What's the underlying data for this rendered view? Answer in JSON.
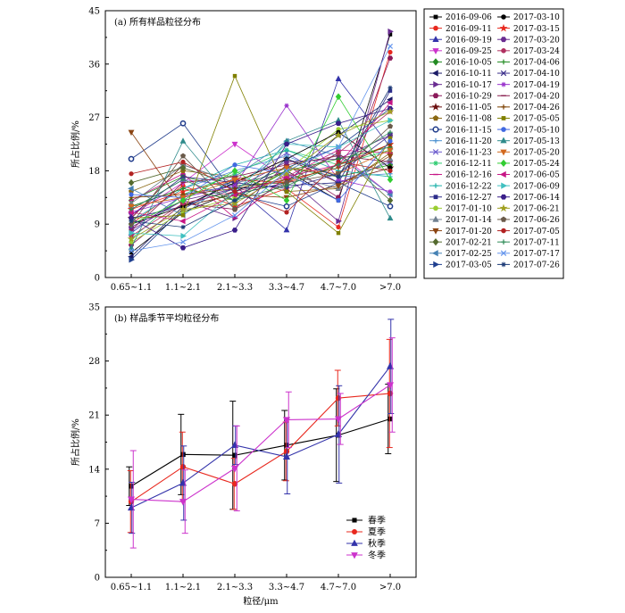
{
  "chart_data": [
    {
      "type": "line",
      "title": "(a)  所有样品粒径分布",
      "xlabel": "",
      "ylabel": "所占比例/%",
      "categories": [
        "0.65~1.1",
        "1.1~2.1",
        "2.1~3.3",
        "3.3~4.7",
        "4.7~7.0",
        ">7.0"
      ],
      "ylim": [
        0,
        45
      ],
      "yticks": [
        "0",
        "9",
        "18",
        "27",
        "36",
        "45"
      ],
      "legend_position": "right",
      "series": [
        {
          "name": "2016-09-06",
          "color": "#000000",
          "marker": "square",
          "values": [
            4.2,
            11.0,
            14.5,
            18.0,
            13.0,
            41.0
          ]
        },
        {
          "name": "2016-09-11",
          "color": "#e8281e",
          "marker": "circle",
          "values": [
            9.0,
            15.5,
            12.0,
            15.0,
            8.5,
            38.0
          ]
        },
        {
          "name": "2016-09-19",
          "color": "#3333aa",
          "marker": "triangle",
          "values": [
            7.5,
            14.0,
            15.5,
            8.0,
            33.5,
            22.0
          ]
        },
        {
          "name": "2016-09-25",
          "color": "#cc33cc",
          "marker": "triangle-down",
          "values": [
            10.5,
            16.0,
            22.5,
            16.5,
            21.0,
            14.0
          ]
        },
        {
          "name": "2016-10-05",
          "color": "#228b22",
          "marker": "diamond",
          "values": [
            13.0,
            17.0,
            15.0,
            18.5,
            17.0,
            19.0
          ]
        },
        {
          "name": "2016-10-11",
          "color": "#1a1a66",
          "marker": "triangle-left",
          "values": [
            3.5,
            12.0,
            14.0,
            16.0,
            24.0,
            30.0
          ]
        },
        {
          "name": "2016-10-17",
          "color": "#6a2c91",
          "marker": "triangle-right",
          "values": [
            8.0,
            13.0,
            10.0,
            17.0,
            9.5,
            41.5
          ]
        },
        {
          "name": "2016-10-29",
          "color": "#8b1a5a",
          "marker": "hexagon",
          "values": [
            5.5,
            12.5,
            11.5,
            19.0,
            13.5,
            37.0
          ]
        },
        {
          "name": "2016-11-05",
          "color": "#6b0f0f",
          "marker": "star",
          "values": [
            10.0,
            19.0,
            16.0,
            20.0,
            16.0,
            18.5
          ]
        },
        {
          "name": "2016-11-08",
          "color": "#8b6914",
          "marker": "pentagon",
          "values": [
            14.5,
            18.0,
            17.0,
            14.5,
            15.0,
            21.0
          ]
        },
        {
          "name": "2016-11-15",
          "color": "#1e3a8a",
          "marker": "circle-half",
          "values": [
            20.0,
            26.0,
            14.0,
            12.0,
            16.0,
            12.0
          ]
        },
        {
          "name": "2016-11-20",
          "color": "#4a90d0",
          "marker": "plus",
          "values": [
            12.0,
            15.0,
            18.0,
            20.5,
            17.0,
            17.5
          ]
        },
        {
          "name": "2016-11-23",
          "color": "#6a5acd",
          "marker": "cross",
          "values": [
            11.5,
            16.5,
            15.5,
            21.0,
            16.0,
            19.5
          ]
        },
        {
          "name": "2016-12-11",
          "color": "#2ecc71",
          "marker": "asterisk",
          "values": [
            6.5,
            14.0,
            17.5,
            21.5,
            19.0,
            21.5
          ]
        },
        {
          "name": "2016-12-16",
          "color": "#c71585",
          "marker": "dash",
          "values": [
            13.0,
            17.5,
            10.0,
            17.0,
            21.5,
            21.0
          ]
        },
        {
          "name": "2016-12-22",
          "color": "#20b2aa",
          "marker": "plus",
          "values": [
            9.5,
            15.0,
            19.0,
            21.5,
            18.0,
            17.0
          ]
        },
        {
          "name": "2016-12-27",
          "color": "#2c2c8a",
          "marker": "square",
          "values": [
            10.0,
            12.0,
            15.0,
            15.5,
            16.0,
            31.5
          ]
        },
        {
          "name": "2017-01-10",
          "color": "#9acd32",
          "marker": "circle",
          "values": [
            6.0,
            11.0,
            13.5,
            18.0,
            25.0,
            26.5
          ]
        },
        {
          "name": "2017-01-14",
          "color": "#708090",
          "marker": "triangle",
          "values": [
            12.5,
            19.0,
            16.0,
            17.5,
            15.0,
            20.0
          ]
        },
        {
          "name": "2017-01-20",
          "color": "#8b4513",
          "marker": "triangle-down",
          "values": [
            24.5,
            12.0,
            14.0,
            13.5,
            15.5,
            20.5
          ]
        },
        {
          "name": "2017-02-21",
          "color": "#556b2f",
          "marker": "diamond",
          "values": [
            16.0,
            18.5,
            15.5,
            16.0,
            21.0,
            13.0
          ]
        },
        {
          "name": "2017-02-25",
          "color": "#4682b4",
          "marker": "triangle-left",
          "values": [
            15.0,
            10.5,
            17.0,
            23.0,
            20.5,
            14.0
          ]
        },
        {
          "name": "2017-03-05",
          "color": "#1f3f8f",
          "marker": "triangle-right",
          "values": [
            3.0,
            11.5,
            16.5,
            18.5,
            22.0,
            28.5
          ]
        },
        {
          "name": "2017-03-10",
          "color": "#000000",
          "marker": "circle",
          "values": [
            9.0,
            12.0,
            16.0,
            20.0,
            24.5,
            18.5
          ]
        },
        {
          "name": "2017-03-15",
          "color": "#e8281e",
          "marker": "star",
          "values": [
            11.5,
            14.5,
            16.5,
            16.0,
            19.0,
            22.5
          ]
        },
        {
          "name": "2017-03-20",
          "color": "#6a2c91",
          "marker": "hexagon",
          "values": [
            8.5,
            13.0,
            15.0,
            19.5,
            20.0,
            24.0
          ]
        },
        {
          "name": "2017-03-24",
          "color": "#b03060",
          "marker": "circle",
          "values": [
            7.0,
            12.5,
            14.5,
            16.5,
            21.0,
            28.0
          ]
        },
        {
          "name": "2017-04-06",
          "color": "#228b22",
          "marker": "plus",
          "values": [
            12.0,
            15.0,
            13.0,
            18.0,
            20.0,
            22.0
          ]
        },
        {
          "name": "2017-04-10",
          "color": "#3b2f8a",
          "marker": "cross",
          "values": [
            10.5,
            17.0,
            16.0,
            15.0,
            17.5,
            24.0
          ]
        },
        {
          "name": "2017-04-19",
          "color": "#9932cc",
          "marker": "asterisk",
          "values": [
            11.0,
            13.5,
            15.5,
            29.0,
            16.5,
            14.5
          ]
        },
        {
          "name": "2017-04-20",
          "color": "#8b2252",
          "marker": "dash",
          "values": [
            8.0,
            16.0,
            17.0,
            19.0,
            20.5,
            19.5
          ]
        },
        {
          "name": "2017-04-26",
          "color": "#7b3f00",
          "marker": "plus",
          "values": [
            13.5,
            14.0,
            15.0,
            16.5,
            18.5,
            22.5
          ]
        },
        {
          "name": "2017-05-05",
          "color": "#808000",
          "marker": "square",
          "values": [
            10.0,
            10.5,
            34.0,
            14.5,
            7.5,
            23.5
          ]
        },
        {
          "name": "2017-05-10",
          "color": "#4169e1",
          "marker": "circle",
          "values": [
            14.0,
            13.5,
            19.0,
            17.5,
            13.0,
            23.0
          ]
        },
        {
          "name": "2017-05-13",
          "color": "#2e8b8b",
          "marker": "triangle",
          "values": [
            5.0,
            23.0,
            12.5,
            23.0,
            26.5,
            10.0
          ]
        },
        {
          "name": "2017-05-20",
          "color": "#d2691e",
          "marker": "triangle-down",
          "values": [
            12.0,
            13.5,
            16.5,
            18.5,
            17.5,
            21.5
          ]
        },
        {
          "name": "2017-05-24",
          "color": "#32cd32",
          "marker": "diamond",
          "values": [
            9.0,
            13.0,
            18.0,
            13.0,
            30.5,
            16.5
          ]
        },
        {
          "name": "2017-06-05",
          "color": "#c71585",
          "marker": "triangle-left",
          "values": [
            11.0,
            9.5,
            14.0,
            17.0,
            19.0,
            29.5
          ]
        },
        {
          "name": "2017-06-09",
          "color": "#40c0c0",
          "marker": "triangle-right",
          "values": [
            7.5,
            7.0,
            14.5,
            22.5,
            22.0,
            26.5
          ]
        },
        {
          "name": "2017-06-14",
          "color": "#3a1f8a",
          "marker": "hexagon",
          "values": [
            10.0,
            5.0,
            8.0,
            22.5,
            26.0,
            28.5
          ]
        },
        {
          "name": "2017-06-21",
          "color": "#a0a020",
          "marker": "star",
          "values": [
            6.5,
            11.5,
            12.5,
            17.5,
            24.0,
            28.0
          ]
        },
        {
          "name": "2017-06-26",
          "color": "#6a5a4a",
          "marker": "pentagon",
          "values": [
            9.0,
            20.5,
            11.5,
            16.0,
            17.5,
            25.5
          ]
        },
        {
          "name": "2017-07-05",
          "color": "#b22222",
          "marker": "circle",
          "values": [
            17.5,
            19.5,
            14.5,
            11.0,
            19.5,
            18.0
          ]
        },
        {
          "name": "2017-07-11",
          "color": "#2e8b57",
          "marker": "plus",
          "values": [
            11.5,
            16.5,
            13.0,
            15.5,
            19.0,
            24.5
          ]
        },
        {
          "name": "2017-07-17",
          "color": "#6495ed",
          "marker": "cross",
          "values": [
            4.5,
            6.0,
            10.5,
            18.0,
            22.0,
            39.0
          ]
        },
        {
          "name": "2017-07-26",
          "color": "#1e3c78",
          "marker": "asterisk",
          "values": [
            9.5,
            8.5,
            13.0,
            20.0,
            17.0,
            32.0
          ]
        }
      ]
    },
    {
      "type": "line",
      "title": "(b)  样品季节平均粒径分布",
      "xlabel": "粒径/μm",
      "ylabel": "所占比例/%",
      "categories": [
        "0.65~1.1",
        "1.1~2.1",
        "2.1~3.3",
        "3.3~4.7",
        "4.7~7.0",
        ">7.0"
      ],
      "ylim": [
        0,
        35
      ],
      "yticks": [
        "0",
        "7",
        "14",
        "21",
        "28",
        "35"
      ],
      "legend_position": "bottom-right",
      "error_bars": true,
      "series": [
        {
          "name": "春季",
          "color": "#000000",
          "marker": "square",
          "values": [
            11.8,
            15.9,
            15.8,
            17.1,
            18.4,
            20.5
          ],
          "errors": [
            2.5,
            5.2,
            7.0,
            4.5,
            6.0,
            4.5
          ]
        },
        {
          "name": "夏季",
          "color": "#e8281e",
          "marker": "circle",
          "values": [
            9.8,
            14.3,
            12.1,
            16.3,
            23.2,
            23.8
          ],
          "errors": [
            4.0,
            4.5,
            3.3,
            3.8,
            3.6,
            7.0
          ]
        },
        {
          "name": "秋季",
          "color": "#3333aa",
          "marker": "triangle",
          "values": [
            9.0,
            12.2,
            17.1,
            15.6,
            18.5,
            27.3
          ],
          "errors": [
            3.3,
            4.8,
            2.5,
            4.8,
            6.3,
            6.1
          ]
        },
        {
          "name": "冬季",
          "color": "#cc33cc",
          "marker": "triangle-down",
          "values": [
            10.1,
            9.8,
            14.1,
            20.4,
            20.5,
            24.9
          ],
          "errors": [
            6.3,
            4.1,
            5.5,
            3.6,
            3.3,
            6.1
          ]
        }
      ]
    }
  ]
}
